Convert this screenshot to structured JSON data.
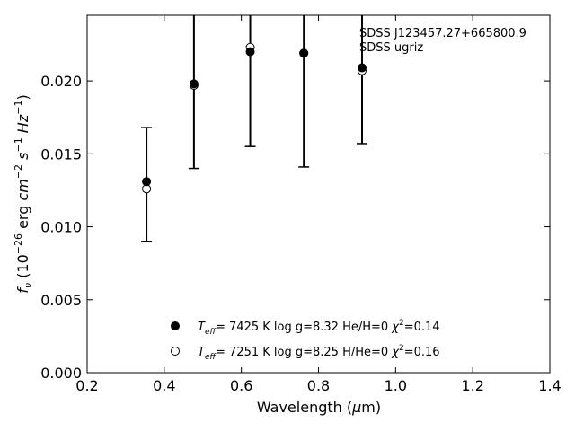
{
  "chart_data": {
    "type": "scatter",
    "title": "",
    "xlabel": "Wavelength (μm)",
    "ylabel": "f_ν (10^-26 erg cm^-2 s^-1 Hz^-1)",
    "xlim": [
      0.2,
      1.4
    ],
    "ylim": [
      0.0,
      0.0245
    ],
    "xticks": [
      0.2,
      0.4,
      0.6,
      0.8,
      1.0,
      1.2,
      1.4
    ],
    "xtick_labels": [
      "0.2",
      "0.4",
      "0.6",
      "0.8",
      "1.0",
      "1.2",
      "1.4"
    ],
    "yticks": [
      0.0,
      0.005,
      0.01,
      0.015,
      0.02
    ],
    "ytick_labels": [
      "0.000",
      "0.005",
      "0.010",
      "0.015",
      "0.020"
    ],
    "grid": false,
    "legend_position": "bottom-center",
    "annotations": [
      "SDSS J123457.27+665800.9",
      "SDSS ugriz"
    ],
    "observed": {
      "x": [
        0.354,
        0.477,
        0.623,
        0.762,
        0.913
      ],
      "yerr_low": [
        0.009,
        0.014,
        0.0155,
        0.0141,
        0.0157
      ],
      "yerr_high": [
        0.0168,
        0.0245,
        0.0245,
        0.0245,
        0.0245
      ],
      "cap_shown": [
        true,
        true,
        true,
        true,
        true
      ]
    },
    "series": [
      {
        "name": "T_eff= 7425 K log g=8.32 He/H=0 χ²=0.14",
        "marker": "filled-circle",
        "color": "#000000",
        "x": [
          0.354,
          0.477,
          0.623,
          0.762,
          0.913
        ],
        "y": [
          0.0131,
          0.0198,
          0.022,
          0.0219,
          0.0209
        ]
      },
      {
        "name": "T_eff= 7251 K log g=8.25 H/He=0 χ²=0.16",
        "marker": "open-circle",
        "color": "#000000",
        "x": [
          0.354,
          0.477,
          0.623,
          0.762,
          0.913
        ],
        "y": [
          0.0126,
          0.0197,
          0.0223,
          0.0219,
          0.0207
        ]
      }
    ],
    "legend": [
      {
        "teff": "T",
        "sub": "eff",
        "rest": "=  7425 K  log g=8.32  He/H=0  ",
        "chi": "χ",
        "sup": "2",
        "chival": "=0.14"
      },
      {
        "teff": "T",
        "sub": "eff",
        "rest": "=  7251 K  log g=8.25  H/He=0  ",
        "chi": "χ",
        "sup": "2",
        "chival": "=0.16"
      }
    ]
  }
}
